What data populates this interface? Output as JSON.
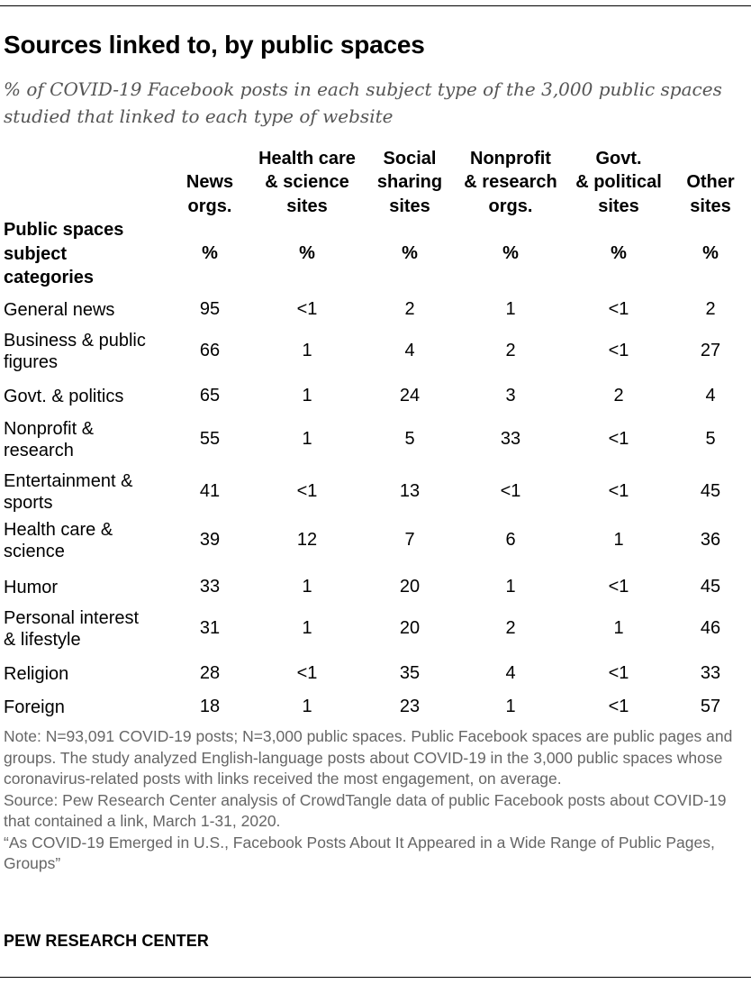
{
  "title": "Sources linked to, by public spaces",
  "subtitle": "% of COVID-19 Facebook posts in each subject type of the 3,000 public spaces studied that linked to each type of website",
  "chart_data": {
    "type": "table",
    "stub_header": [
      "Public spaces",
      "subject",
      "categories"
    ],
    "columns": [
      {
        "label_lines": [
          "News",
          "orgs."
        ],
        "unit": "%"
      },
      {
        "label_lines": [
          "Health care",
          "& science",
          "sites"
        ],
        "unit": "%"
      },
      {
        "label_lines": [
          "Social",
          "sharing",
          "sites"
        ],
        "unit": "%"
      },
      {
        "label_lines": [
          "Nonprofit",
          "& research",
          "orgs."
        ],
        "unit": "%"
      },
      {
        "label_lines": [
          "Govt.",
          "& political",
          "sites"
        ],
        "unit": "%"
      },
      {
        "label_lines": [
          "Other",
          "sites"
        ],
        "unit": "%"
      }
    ],
    "rows": [
      {
        "label_lines": [
          "General news"
        ],
        "values": [
          "95",
          "<1",
          "2",
          "1",
          "<1",
          "2"
        ]
      },
      {
        "label_lines": [
          "Business & public",
          "figures"
        ],
        "values": [
          "66",
          "1",
          "4",
          "2",
          "<1",
          "27"
        ]
      },
      {
        "label_lines": [
          "Govt. & politics"
        ],
        "values": [
          "65",
          "1",
          "24",
          "3",
          "2",
          "4"
        ]
      },
      {
        "label_lines": [
          "Nonprofit &",
          "research"
        ],
        "values": [
          "55",
          "1",
          "5",
          "33",
          "<1",
          "5"
        ]
      },
      {
        "label_lines": [
          "Entertainment &",
          "sports"
        ],
        "values": [
          "41",
          "<1",
          "13",
          "<1",
          "<1",
          "45"
        ]
      },
      {
        "label_lines": [
          "Health care &",
          "science"
        ],
        "values": [
          "39",
          "12",
          "7",
          "6",
          "1",
          "36"
        ]
      },
      {
        "label_lines": [
          "Humor"
        ],
        "values": [
          "33",
          "1",
          "20",
          "1",
          "<1",
          "45"
        ]
      },
      {
        "label_lines": [
          "Personal interest",
          "& lifestyle"
        ],
        "values": [
          "31",
          "1",
          "20",
          "2",
          "1",
          "46"
        ]
      },
      {
        "label_lines": [
          "Religion"
        ],
        "values": [
          "28",
          "<1",
          "35",
          "4",
          "<1",
          "33"
        ]
      },
      {
        "label_lines": [
          "Foreign"
        ],
        "values": [
          "18",
          "1",
          "23",
          "1",
          "<1",
          "57"
        ]
      }
    ]
  },
  "notes": {
    "note": "Note: N=93,091 COVID-19 posts; N=3,000 public spaces. Public Facebook spaces are public pages and groups. The study analyzed English-language posts about COVID-19 in the 3,000 public spaces whose coronavirus-related posts with links received the most engagement, on average.",
    "source": "Source: Pew Research Center analysis of CrowdTangle data of public Facebook posts about COVID-19 that contained a link, March 1-31, 2020.",
    "report": "“As COVID-19 Emerged in U.S., Facebook Posts About It Appeared in a Wide Range of Public Pages, Groups”"
  },
  "brand": "PEW RESEARCH CENTER",
  "colors": {
    "text": "#000000",
    "subtitle": "#555555",
    "note": "#666666"
  }
}
